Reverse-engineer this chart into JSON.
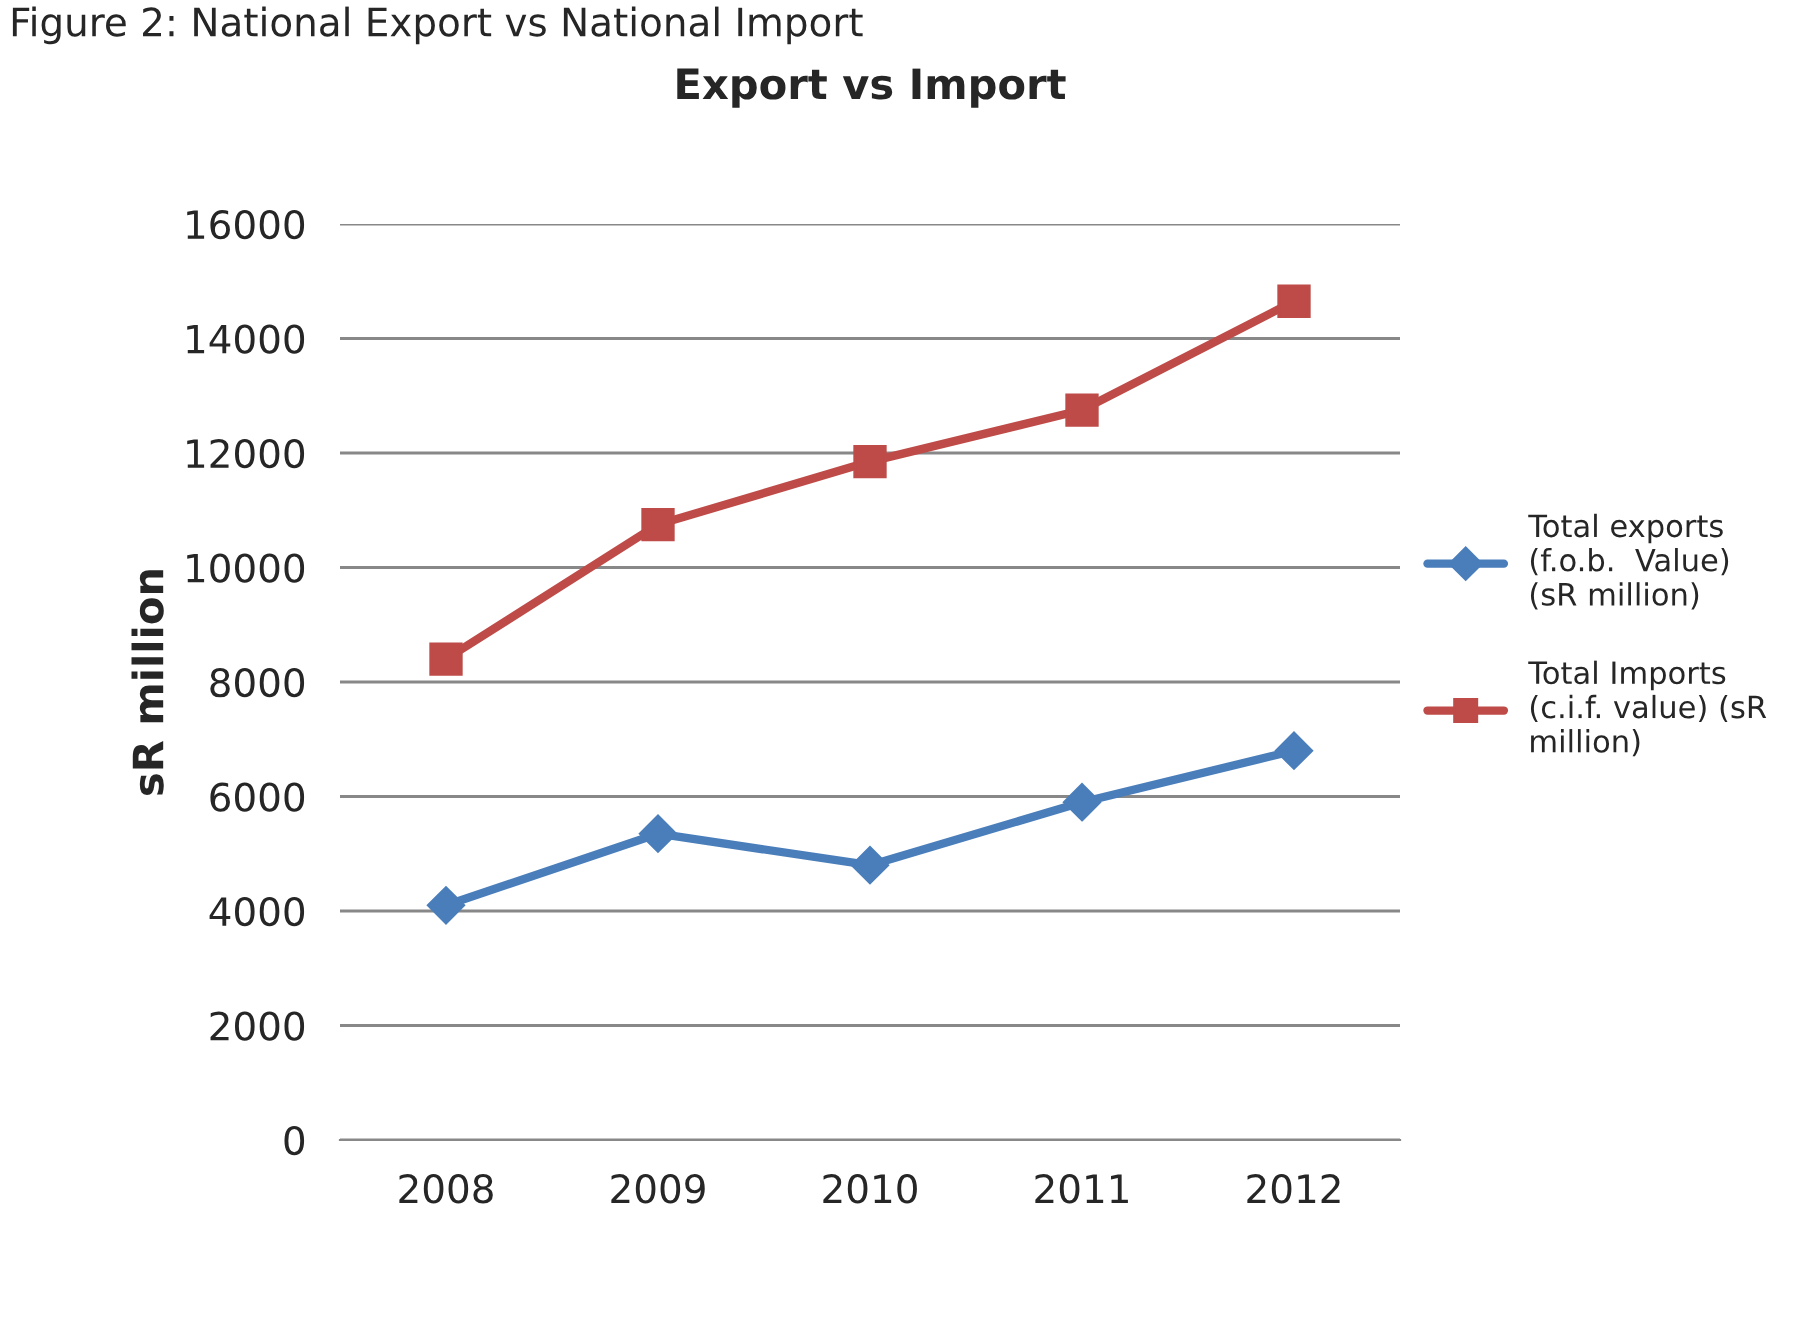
{
  "chart_data": {
    "type": "line",
    "title": "Export vs Import",
    "ylabel": "sR million",
    "annotations": [
      "Figure 2: National Export vs National Import"
    ],
    "categories": [
      "2008",
      "2009",
      "2010",
      "2011",
      "2012"
    ],
    "series": [
      {
        "name": "Total exports\n(f.o.b.  Value)\n(sR million)",
        "color": "#4a7ebb",
        "marker": "diamond",
        "values": [
          4100,
          5350,
          4800,
          5900,
          6800
        ]
      },
      {
        "name": "Total Imports\n(c.i.f. value) (sR\nmillion)",
        "color": "#be4b48",
        "marker": "square",
        "values": [
          8400,
          10750,
          11850,
          12750,
          14650
        ]
      }
    ],
    "ylim": [
      0,
      16000
    ],
    "yticks": [
      0,
      2000,
      4000,
      6000,
      8000,
      10000,
      12000,
      14000,
      16000
    ],
    "grid": "y",
    "legend": "right"
  }
}
